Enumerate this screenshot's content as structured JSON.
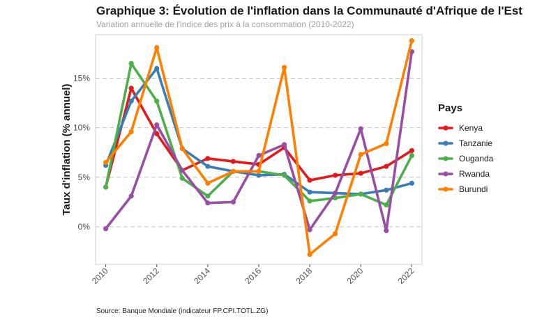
{
  "chart_data": {
    "type": "line",
    "title": "Graphique 3: Évolution de l'inflation dans la Communauté d'Afrique de l'Est",
    "subtitle": "Variation annuelle de l'indice des prix à la consommation (2010-2022)",
    "xlabel": "",
    "ylabel": "Taux d'inflation (% annuel)",
    "x": [
      2010,
      2011,
      2012,
      2013,
      2014,
      2015,
      2016,
      2017,
      2018,
      2019,
      2020,
      2021,
      2022
    ],
    "x_ticks": [
      "2010",
      "2012",
      "2014",
      "2016",
      "2018",
      "2020",
      "2022"
    ],
    "y_ticks": [
      "0%",
      "5%",
      "10%",
      "15%"
    ],
    "y_tick_values": [
      0,
      5,
      10,
      15
    ],
    "ylim": [
      -3.8,
      19.4
    ],
    "xlim": [
      2009.6,
      2022.4
    ],
    "grid": "horizontal-dashed",
    "legend": {
      "title": "Pays",
      "placement": "right"
    },
    "series": [
      {
        "name": "Kenya",
        "color": "#e31a1c",
        "values": [
          4.0,
          14.0,
          9.4,
          5.7,
          6.9,
          6.6,
          6.3,
          8.0,
          4.7,
          5.2,
          5.4,
          6.1,
          7.7
        ]
      },
      {
        "name": "Tanzanie",
        "color": "#377eb8",
        "values": [
          6.2,
          12.7,
          16.0,
          7.9,
          6.1,
          5.6,
          5.2,
          5.3,
          3.5,
          3.4,
          3.3,
          3.7,
          4.4
        ]
      },
      {
        "name": "Ouganda",
        "color": "#4daf4a",
        "values": [
          4.0,
          16.5,
          12.7,
          4.9,
          3.1,
          5.6,
          5.6,
          5.2,
          2.6,
          2.9,
          3.3,
          2.2,
          7.2
        ]
      },
      {
        "name": "Rwanda",
        "color": "#984ea3",
        "values": [
          -0.2,
          3.1,
          10.3,
          5.7,
          2.4,
          2.5,
          7.2,
          8.3,
          -0.3,
          3.4,
          9.9,
          -0.4,
          17.7
        ]
      },
      {
        "name": "Burundi",
        "color": "#ff7f00",
        "values": [
          6.5,
          9.6,
          18.1,
          7.9,
          4.4,
          5.6,
          5.6,
          16.1,
          -2.8,
          -0.7,
          7.3,
          8.4,
          18.8
        ]
      }
    ],
    "source": "Source: Banque Mondiale (indicateur FP.CPI.TOTL.ZG)"
  }
}
